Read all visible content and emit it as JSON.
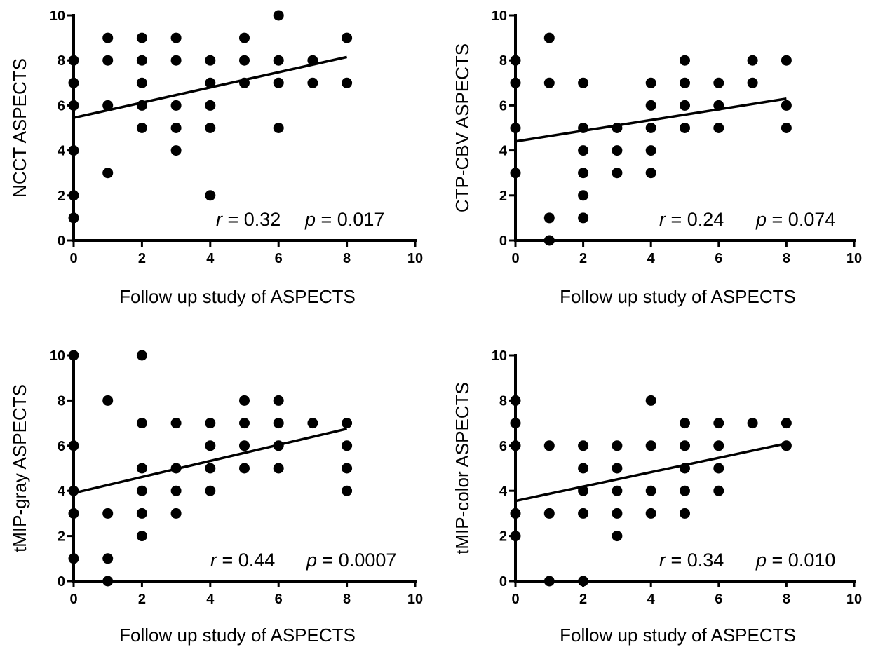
{
  "chart_data": [
    {
      "type": "scatter",
      "xlabel": "Follow up study of ASPECTS",
      "ylabel": "NCCT ASPECTS",
      "xlim": [
        0,
        10
      ],
      "ylim": [
        0,
        10
      ],
      "x_ticks": [
        "0",
        "2",
        "4",
        "6",
        "8",
        "10"
      ],
      "y_ticks": [
        "0",
        "2",
        "4",
        "6",
        "8",
        "10"
      ],
      "grid": false,
      "points": [
        [
          0,
          8
        ],
        [
          0,
          7
        ],
        [
          0,
          6
        ],
        [
          0,
          4
        ],
        [
          0,
          2
        ],
        [
          0,
          1
        ],
        [
          1,
          9
        ],
        [
          1,
          8
        ],
        [
          1,
          6
        ],
        [
          1,
          3
        ],
        [
          2,
          9
        ],
        [
          2,
          8
        ],
        [
          2,
          7
        ],
        [
          2,
          6
        ],
        [
          2,
          5
        ],
        [
          3,
          9
        ],
        [
          3,
          8
        ],
        [
          3,
          6
        ],
        [
          3,
          5
        ],
        [
          3,
          4
        ],
        [
          4,
          8
        ],
        [
          4,
          7
        ],
        [
          4,
          6
        ],
        [
          4,
          5
        ],
        [
          4,
          2
        ],
        [
          5,
          9
        ],
        [
          5,
          8
        ],
        [
          5,
          7
        ],
        [
          6,
          10
        ],
        [
          6,
          8
        ],
        [
          6,
          7
        ],
        [
          6,
          5
        ],
        [
          7,
          8
        ],
        [
          7,
          7
        ],
        [
          8,
          9
        ],
        [
          8,
          7
        ]
      ],
      "fit_line": {
        "x": [
          0,
          8
        ],
        "y": [
          5.45,
          8.15
        ]
      },
      "r_label": "r",
      "r_value": " = 0.32",
      "p_label": "p",
      "p_value": " = 0.017"
    },
    {
      "type": "scatter",
      "xlabel": "Follow up study of ASPECTS",
      "ylabel": "CTP-CBV ASPECTS",
      "xlim": [
        0,
        10
      ],
      "ylim": [
        0,
        10
      ],
      "x_ticks": [
        "0",
        "2",
        "4",
        "6",
        "8",
        "10"
      ],
      "y_ticks": [
        "0",
        "2",
        "4",
        "6",
        "8",
        "10"
      ],
      "grid": false,
      "points": [
        [
          0,
          8
        ],
        [
          0,
          7
        ],
        [
          0,
          5
        ],
        [
          0,
          3
        ],
        [
          1,
          9
        ],
        [
          1,
          7
        ],
        [
          1,
          1
        ],
        [
          1,
          0
        ],
        [
          2,
          7
        ],
        [
          2,
          5
        ],
        [
          2,
          4
        ],
        [
          2,
          3
        ],
        [
          2,
          2
        ],
        [
          2,
          1
        ],
        [
          3,
          5
        ],
        [
          3,
          4
        ],
        [
          3,
          3
        ],
        [
          4,
          7
        ],
        [
          4,
          6
        ],
        [
          4,
          5
        ],
        [
          4,
          4
        ],
        [
          4,
          3
        ],
        [
          5,
          8
        ],
        [
          5,
          7
        ],
        [
          5,
          6
        ],
        [
          5,
          5
        ],
        [
          6,
          7
        ],
        [
          6,
          6
        ],
        [
          6,
          5
        ],
        [
          7,
          8
        ],
        [
          7,
          7
        ],
        [
          8,
          8
        ],
        [
          8,
          6
        ],
        [
          8,
          5
        ]
      ],
      "fit_line": {
        "x": [
          0,
          8
        ],
        "y": [
          4.4,
          6.3
        ]
      },
      "r_label": "r",
      "r_value": " = 0.24",
      "p_label": "p",
      "p_value": " = 0.074"
    },
    {
      "type": "scatter",
      "xlabel": "Follow up study of ASPECTS",
      "ylabel": "tMIP-gray ASPECTS",
      "xlim": [
        0,
        10
      ],
      "ylim": [
        0,
        10
      ],
      "x_ticks": [
        "0",
        "2",
        "4",
        "6",
        "8",
        "10"
      ],
      "y_ticks": [
        "0",
        "2",
        "4",
        "6",
        "8",
        "10"
      ],
      "grid": false,
      "points": [
        [
          0,
          10
        ],
        [
          0,
          6
        ],
        [
          0,
          4
        ],
        [
          0,
          3
        ],
        [
          0,
          1
        ],
        [
          1,
          8
        ],
        [
          1,
          3
        ],
        [
          1,
          1
        ],
        [
          1,
          0
        ],
        [
          2,
          10
        ],
        [
          2,
          7
        ],
        [
          2,
          5
        ],
        [
          2,
          4
        ],
        [
          2,
          3
        ],
        [
          2,
          2
        ],
        [
          3,
          7
        ],
        [
          3,
          5
        ],
        [
          3,
          4
        ],
        [
          3,
          3
        ],
        [
          4,
          7
        ],
        [
          4,
          6
        ],
        [
          4,
          5
        ],
        [
          4,
          4
        ],
        [
          5,
          8
        ],
        [
          5,
          7
        ],
        [
          5,
          6
        ],
        [
          5,
          5
        ],
        [
          6,
          8
        ],
        [
          6,
          7
        ],
        [
          6,
          6
        ],
        [
          6,
          5
        ],
        [
          7,
          7
        ],
        [
          8,
          7
        ],
        [
          8,
          6
        ],
        [
          8,
          5
        ],
        [
          8,
          4
        ]
      ],
      "fit_line": {
        "x": [
          0,
          8
        ],
        "y": [
          3.9,
          6.75
        ]
      },
      "r_label": "r",
      "r_value": " = 0.44",
      "p_label": "p",
      "p_value": " = 0.0007"
    },
    {
      "type": "scatter",
      "xlabel": "Follow up study of ASPECTS",
      "ylabel": "tMIP-color ASPECTS",
      "xlim": [
        0,
        10
      ],
      "ylim": [
        0,
        10
      ],
      "x_ticks": [
        "0",
        "2",
        "4",
        "6",
        "8",
        "10"
      ],
      "y_ticks": [
        "0",
        "2",
        "4",
        "6",
        "8",
        "10"
      ],
      "grid": false,
      "points": [
        [
          0,
          8
        ],
        [
          0,
          7
        ],
        [
          0,
          6
        ],
        [
          0,
          3
        ],
        [
          0,
          2
        ],
        [
          1,
          6
        ],
        [
          1,
          3
        ],
        [
          1,
          0
        ],
        [
          2,
          6
        ],
        [
          2,
          5
        ],
        [
          2,
          4
        ],
        [
          2,
          3
        ],
        [
          2,
          0
        ],
        [
          3,
          6
        ],
        [
          3,
          5
        ],
        [
          3,
          4
        ],
        [
          3,
          3
        ],
        [
          3,
          2
        ],
        [
          4,
          8
        ],
        [
          4,
          6
        ],
        [
          4,
          4
        ],
        [
          4,
          3
        ],
        [
          5,
          7
        ],
        [
          5,
          6
        ],
        [
          5,
          5
        ],
        [
          5,
          4
        ],
        [
          5,
          3
        ],
        [
          6,
          7
        ],
        [
          6,
          6
        ],
        [
          6,
          5
        ],
        [
          6,
          4
        ],
        [
          7,
          7
        ],
        [
          8,
          7
        ],
        [
          8,
          6
        ]
      ],
      "fit_line": {
        "x": [
          0,
          8
        ],
        "y": [
          3.55,
          6.1
        ]
      },
      "r_label": "r",
      "r_value": " = 0.34",
      "p_label": "p",
      "p_value": " = 0.010"
    }
  ]
}
